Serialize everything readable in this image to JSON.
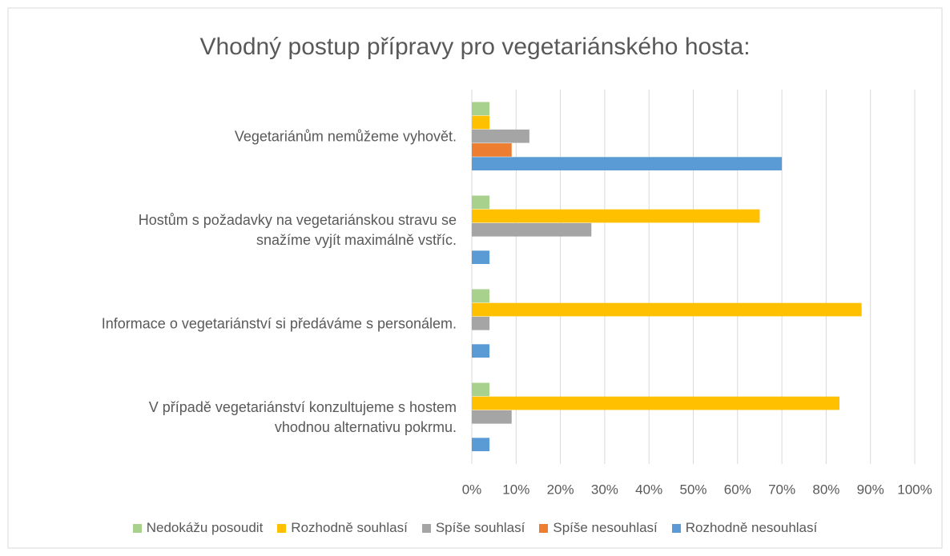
{
  "chart_data": {
    "type": "hbar",
    "title": "Vhodný postup přípravy pro vegetariánského hosta:",
    "categories": [
      "Vegetariánům nemůžeme vyhovět.",
      "Hostům s požadavky na vegetariánskou stravu se\nsnažíme vyjít maximálně vstříc.",
      "Informace o vegetariánství si předáváme s personálem.",
      "V případě vegetariánství konzultujeme s hostem\nvhodnou alternativu pokrmu."
    ],
    "series": [
      {
        "name": "Nedokážu posoudit",
        "color": "#a9d18e",
        "values": [
          4,
          4,
          4,
          4
        ]
      },
      {
        "name": "Rozhodně souhlasí",
        "color": "#ffc000",
        "values": [
          4,
          65,
          88,
          83
        ]
      },
      {
        "name": "Spíše souhlasí",
        "color": "#a5a5a5",
        "values": [
          13,
          27,
          4,
          9
        ]
      },
      {
        "name": "Spíše nesouhlasí",
        "color": "#ed7d31",
        "values": [
          9,
          0,
          0,
          0
        ]
      },
      {
        "name": "Rozhodně nesouhlasí",
        "color": "#5b9bd5",
        "values": [
          70,
          4,
          4,
          4
        ]
      }
    ],
    "xlim": [
      0,
      100
    ],
    "xticks": [
      {
        "value": 0,
        "label": "0%"
      },
      {
        "value": 10,
        "label": "10%"
      },
      {
        "value": 20,
        "label": "20%"
      },
      {
        "value": 30,
        "label": "30%"
      },
      {
        "value": 40,
        "label": "40%"
      },
      {
        "value": 50,
        "label": "50%"
      },
      {
        "value": 60,
        "label": "60%"
      },
      {
        "value": 70,
        "label": "70%"
      },
      {
        "value": 80,
        "label": "80%"
      },
      {
        "value": 90,
        "label": "90%"
      },
      {
        "value": 100,
        "label": "100%"
      }
    ],
    "grid": true,
    "legend": "bottom"
  }
}
